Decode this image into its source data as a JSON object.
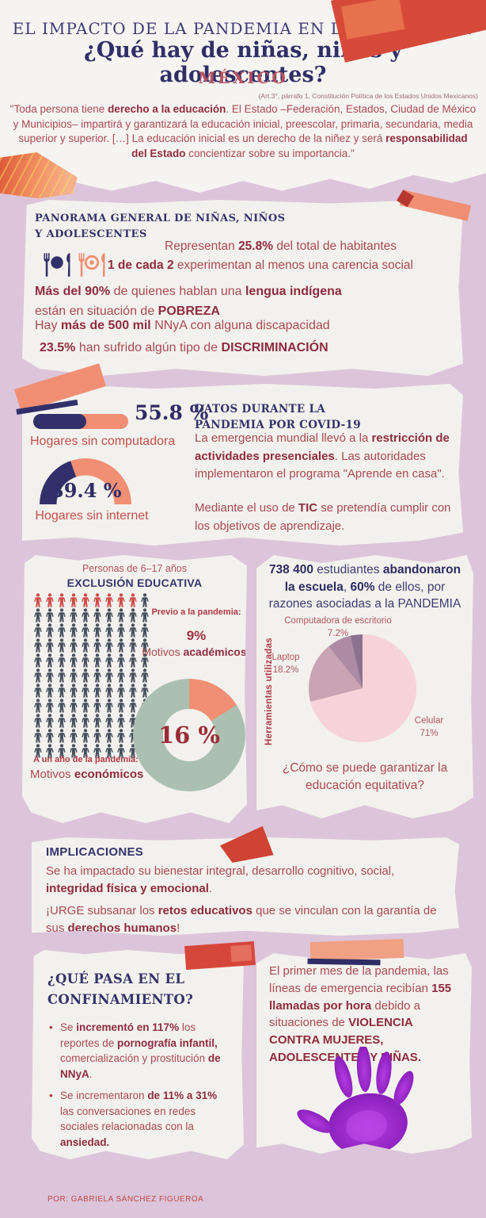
{
  "page": {
    "background": "#dcc5da",
    "card_background": "#f3f1ed",
    "author_credit": "POR: GABRIELA SÁNCHEZ FIGUEROA"
  },
  "palette": {
    "navy": "#33346b",
    "body_red": "#a84a52",
    "bold_maroon": "#8e2c3e",
    "salmon": "#f08f73",
    "tape_red": "#d64a3a",
    "sage_green": "#abc0b1",
    "rose": "#b5525f",
    "hand_purple": "#8a1fb8"
  },
  "header": {
    "title_line1": "EL IMPACTO DE LA PANDEMIA EN LA EDUCACIÓN",
    "title_line2": "¿Qué hay de niñas, niños y adolescentes?",
    "country": "MÉXICO",
    "citation": "(Art.3°, párrafo 1, Constitución Política de los Estados Unidos Mexicanos)",
    "quote": [
      {
        "t": "\"Toda persona tiene "
      },
      {
        "t": "derecho a la educación",
        "b": true
      },
      {
        "t": ". El Estado –Federación, Estados, Ciudad de México y Municipios– impartirá y garantizará la educación inicial, preescolar, primaria, secundaria, media superior y superior.  […] La educación inicial es un derecho de la niñez y será "
      },
      {
        "t": "responsabilidad del Estado",
        "b": true
      },
      {
        "t": " concientizar sobre su importancia.\""
      }
    ]
  },
  "panorama": {
    "heading_line1": "PANORAMA GENERAL DE NIÑAS, NIÑOS",
    "heading_line2": "Y ADOLESCENTES",
    "facts": {
      "habitantes": [
        {
          "t": "Representan "
        },
        {
          "t": "25.8%",
          "b": true
        },
        {
          "t": " del total de habitantes"
        }
      ],
      "carencia": [
        {
          "t": "1 de cada 2",
          "b": true
        },
        {
          "t": " experimentan al menos una carencia social"
        }
      ],
      "indigena": [
        {
          "t": "Más del 90%",
          "b": true
        },
        {
          "t": " de quienes hablan una "
        },
        {
          "t": "lengua indígena",
          "b": true
        },
        {
          "t": " están en situación de "
        },
        {
          "t": "POBREZA",
          "b": true
        }
      ],
      "discapacidad": [
        {
          "t": "Hay "
        },
        {
          "t": "más de 500 mil",
          "b": true
        },
        {
          "t": " NNyA con alguna discapacidad"
        }
      ],
      "discriminacion": [
        {
          "t": "23.5%",
          "b": true
        },
        {
          "t": " han sufrido algún tipo de "
        },
        {
          "t": "DISCRIMINACIÓN",
          "b": true
        }
      ]
    }
  },
  "covid": {
    "heading_line1": "DATOS DURANTE LA",
    "heading_line2": "PANDEMIA POR COVID-19",
    "paragraph1": [
      {
        "t": "La emergencia mundial llevó a la "
      },
      {
        "t": "restricción de actividades presenciales",
        "b": true
      },
      {
        "t": ". Las autoridades implementaron el programa \"Aprende en casa\"."
      }
    ],
    "paragraph2": [
      {
        "t": "Mediante el uso de "
      },
      {
        "t": "TIC",
        "b": true
      },
      {
        "t": " se pretendía cumplir con los objetivos de aprendizaje."
      }
    ],
    "bar": {
      "value_label": "55.8 %",
      "caption": "Hogares sin computadora",
      "pct": 55.8
    },
    "gauge": {
      "value_label": "39.4 %",
      "caption": "Hogares sin internet",
      "pct": 39.4
    }
  },
  "exclusion": {
    "subtitle": "Personas de 6–17 años",
    "title": "EXCLUSIÓN EDUCATIVA",
    "pictogram": {
      "rows": 11,
      "cols": 10,
      "highlighted": 9
    },
    "before": {
      "label": "Previo a la pandemia:",
      "value": "9%",
      "motive": [
        {
          "t": "Motivos "
        },
        {
          "t": "académicos",
          "b": true
        }
      ]
    },
    "after": {
      "label": "A un año de la pandemia:",
      "motive": [
        {
          "t": "Motivos "
        },
        {
          "t": "económicos",
          "b": true
        }
      ]
    },
    "donut": {
      "value_label": "16 %",
      "pct": 16,
      "slice_color": "#f08f73",
      "ring_color": "#abc0b1"
    }
  },
  "abandono": {
    "headline": [
      {
        "t": "738 400",
        "b": true
      },
      {
        "t": " estudiantes "
      },
      {
        "t": "abandonaron la escuela",
        "b": true
      },
      {
        "t": ", "
      },
      {
        "t": "60%",
        "b": true
      },
      {
        "t": " de ellos, por razones asociadas a la PANDEMIA"
      }
    ],
    "ylabel": "Herramientas utilizadas",
    "pie": {
      "slices": [
        {
          "label": "Celular",
          "value_label": "71%",
          "pct": 71,
          "color": "#f5d3d9"
        },
        {
          "label": "Laptop",
          "value_label": "18.2%",
          "pct": 18.2,
          "color": "#c9a4b2"
        },
        {
          "label": "Computadora de escritorio",
          "value_label": "7.2%",
          "pct": 7.2,
          "color": "#ad8ba4"
        },
        {
          "label": "",
          "value_label": "",
          "pct": 3.6,
          "color": "#8b7390"
        }
      ]
    },
    "question": "¿Cómo se puede garantizar la educación equitativa?"
  },
  "implicaciones": {
    "title": "IMPLICACIONES",
    "p1": [
      {
        "t": "Se ha impactado su bienestar integral, desarrollo cognitivo, social, "
      },
      {
        "t": "integridad física y emocional",
        "b": true
      },
      {
        "t": "."
      }
    ],
    "p2": [
      {
        "t": "¡URGE subsanar los "
      },
      {
        "t": "retos educativos",
        "b": true
      },
      {
        "t": " que se vinculan con la garantía de sus "
      },
      {
        "t": "derechos humanos",
        "b": true
      },
      {
        "t": "!"
      }
    ]
  },
  "confinamiento": {
    "title_line1": "¿QUÉ PASA EN EL",
    "title_line2": "CONFINAMIENTO?",
    "bullets": [
      [
        {
          "t": "Se "
        },
        {
          "t": "incrementó en 117%",
          "b": true
        },
        {
          "t": " los reportes de "
        },
        {
          "t": "pornografía infantil,",
          "b": true
        },
        {
          "t": " comercialización y prostitución "
        },
        {
          "t": "de NNyA",
          "b": true
        },
        {
          "t": "."
        }
      ],
      [
        {
          "t": "Se incrementaron "
        },
        {
          "t": "de 11% a 31%",
          "b": true
        },
        {
          "t": " las conversaciones en redes sociales relacionadas con la "
        },
        {
          "t": "ansiedad.",
          "b": true
        }
      ]
    ]
  },
  "emergencia": {
    "text": [
      {
        "t": "El primer mes de la pandemia, las líneas de emergencia recibían "
      },
      {
        "t": "155 llamadas por hora",
        "b": true
      },
      {
        "t": " debido a situaciones de "
      },
      {
        "t": "VIOLENCIA CONTRA MUJERES, ADOLESCENTES Y NIÑAS.",
        "b": true
      }
    ]
  },
  "chart_data": [
    {
      "type": "bar",
      "title": "Hogares sin computadora",
      "categories": [
        "Hogares sin computadora"
      ],
      "values": [
        55.8
      ],
      "unit": "%"
    },
    {
      "type": "gauge",
      "title": "Hogares sin internet",
      "values": [
        39.4
      ],
      "unit": "%",
      "range": [
        0,
        100
      ]
    },
    {
      "type": "pictogram-donut",
      "title": "Exclusión educativa — Personas de 6–17 años",
      "series": [
        {
          "name": "Previo a la pandemia (motivos académicos)",
          "values": [
            9
          ]
        },
        {
          "name": "A un año de la pandemia (motivos económicos)",
          "values": [
            16
          ]
        }
      ],
      "unit": "%",
      "pictogram_total": 110,
      "pictogram_highlighted": 9
    },
    {
      "type": "pie",
      "title": "Herramientas utilizadas",
      "categories": [
        "Celular",
        "Laptop",
        "Computadora de escritorio",
        ""
      ],
      "values": [
        71,
        18.2,
        7.2,
        3.6
      ],
      "unit": "%",
      "legend_position": "around"
    }
  ]
}
